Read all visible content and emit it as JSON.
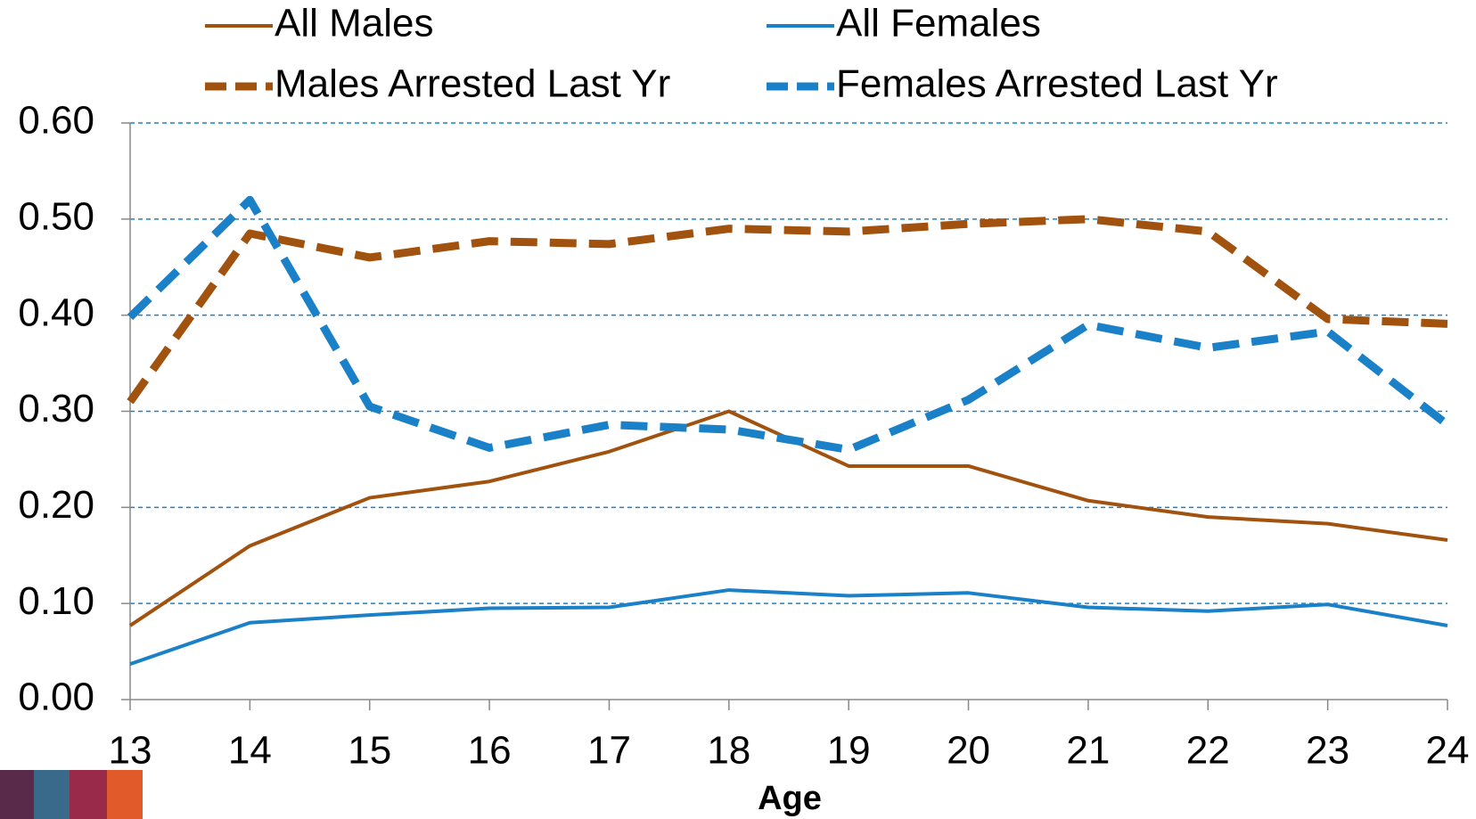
{
  "chart_data": {
    "type": "line",
    "x_label": "Age",
    "x": [
      13,
      14,
      15,
      16,
      17,
      18,
      19,
      20,
      21,
      22,
      23,
      24
    ],
    "xlim": [
      13,
      24
    ],
    "xticks": [
      13,
      14,
      15,
      16,
      17,
      18,
      19,
      20,
      21,
      22,
      23,
      24
    ],
    "ylim": [
      0,
      0.6
    ],
    "yticks": [
      {
        "value": 0,
        "label": "0.00"
      },
      {
        "value": 0.1,
        "label": "0.10"
      },
      {
        "value": 0.2,
        "label": "0.20"
      },
      {
        "value": 0.3,
        "label": "0.30"
      },
      {
        "value": 0.4,
        "label": "0.40"
      },
      {
        "value": 0.5,
        "label": "0.50"
      },
      {
        "value": 0.6,
        "label": "0.60"
      }
    ],
    "grid": true,
    "legend": "top",
    "series": [
      {
        "name": "All Males",
        "color": "#a0520e",
        "dashed": false,
        "values": [
          0.077,
          0.16,
          0.21,
          0.227,
          0.258,
          0.3,
          0.243,
          0.243,
          0.207,
          0.19,
          0.183,
          0.166
        ]
      },
      {
        "name": "All Females",
        "color": "#1a80c8",
        "dashed": false,
        "values": [
          0.037,
          0.08,
          0.088,
          0.095,
          0.096,
          0.114,
          0.108,
          0.111,
          0.096,
          0.092,
          0.099,
          0.077
        ]
      },
      {
        "name": "Males Arrested Last Yr",
        "color": "#a0520e",
        "dashed": true,
        "values": [
          0.31,
          0.485,
          0.46,
          0.477,
          0.474,
          0.49,
          0.487,
          0.495,
          0.5,
          0.487,
          0.396,
          0.391
        ]
      },
      {
        "name": "Females Arrested Last Yr",
        "color": "#1a80c8",
        "dashed": true,
        "values": [
          0.398,
          0.52,
          0.305,
          0.262,
          0.286,
          0.281,
          0.26,
          0.312,
          0.39,
          0.366,
          0.383,
          0.286
        ]
      }
    ]
  }
}
